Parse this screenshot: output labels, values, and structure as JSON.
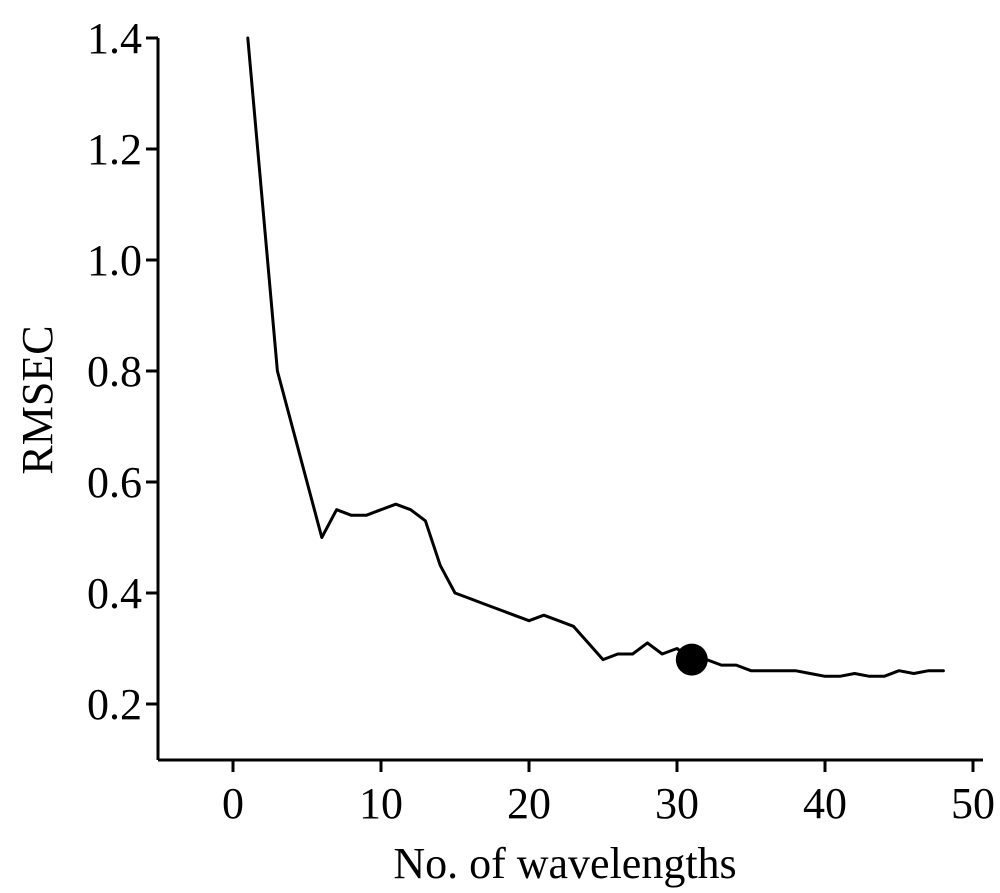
{
  "chart_data": {
    "type": "line",
    "title": "",
    "xlabel": "No. of wavelengths",
    "ylabel": "RMSEC",
    "xlim": [
      -5,
      50
    ],
    "ylim": [
      0.1,
      1.4
    ],
    "xticks": [
      0,
      10,
      20,
      30,
      40,
      50
    ],
    "yticks": [
      0.2,
      0.4,
      0.6,
      0.8,
      1.0,
      1.2,
      1.4
    ],
    "xtick_labels": [
      "0",
      "10",
      "20",
      "30",
      "40",
      "50"
    ],
    "ytick_labels": [
      "0.2",
      "0.4",
      "0.6",
      "0.8",
      "1.0",
      "1.2",
      "1.4"
    ],
    "grid": false,
    "legend": "none",
    "line_color": "#000000",
    "series": [
      {
        "x": [
          1,
          3,
          6,
          7,
          8,
          9,
          10,
          11,
          12,
          13,
          14,
          15,
          16,
          17,
          18,
          19,
          20,
          21,
          22,
          23,
          24,
          25,
          26,
          27,
          28,
          29,
          30,
          31,
          32,
          33,
          34,
          35,
          36,
          37,
          38,
          39,
          40,
          41,
          42,
          43,
          44,
          45,
          46,
          47,
          48
        ],
        "values": [
          1.4,
          0.8,
          0.5,
          0.55,
          0.54,
          0.54,
          0.55,
          0.56,
          0.55,
          0.53,
          0.45,
          0.4,
          0.39,
          0.38,
          0.37,
          0.36,
          0.35,
          0.36,
          0.35,
          0.34,
          0.31,
          0.28,
          0.29,
          0.29,
          0.31,
          0.29,
          0.3,
          0.28,
          0.28,
          0.27,
          0.27,
          0.26,
          0.26,
          0.26,
          0.26,
          0.255,
          0.25,
          0.25,
          0.255,
          0.25,
          0.25,
          0.26,
          0.255,
          0.26,
          0.26
        ]
      }
    ],
    "highlight_point": {
      "x": 31,
      "y": 0.28
    }
  }
}
